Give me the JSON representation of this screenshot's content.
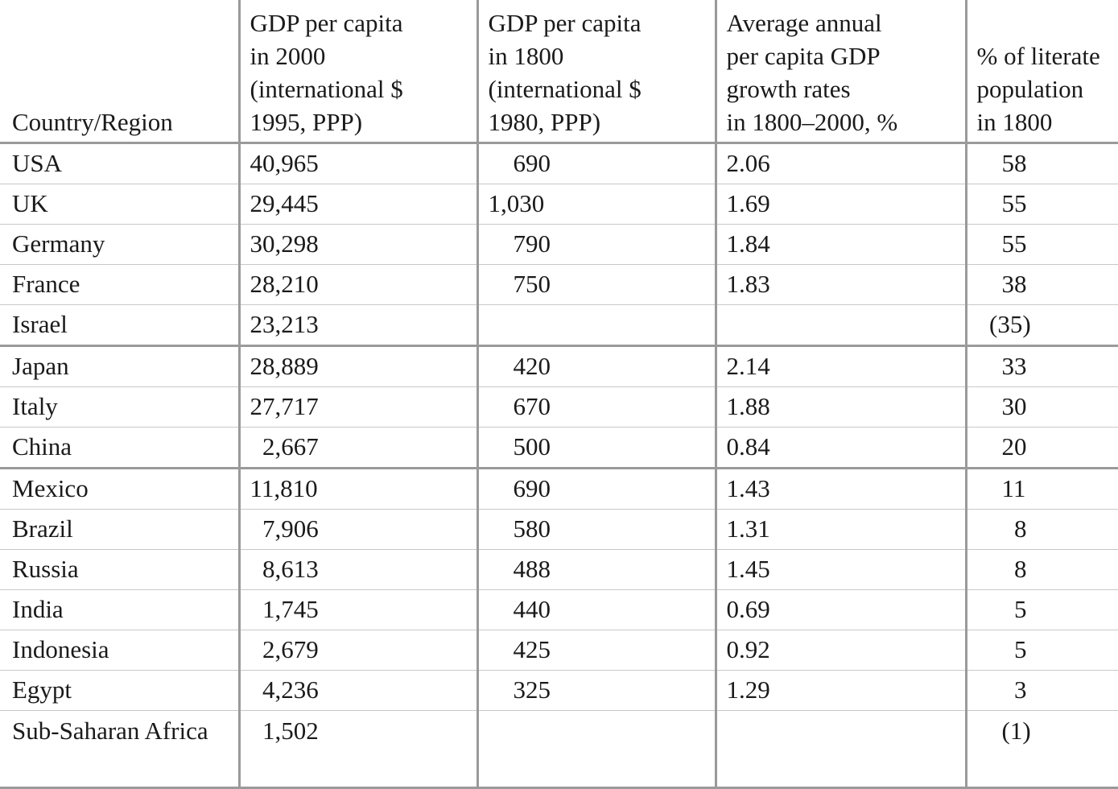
{
  "chart_data": {
    "type": "table",
    "columns": [
      "Country/Region",
      "GDP per capita in 2000 (international $ 1995, PPP)",
      "GDP per capita in 1800 (international $ 1980, PPP)",
      "Average annual per capita GDP growth rates in 1800–2000, %",
      "% of literate population in 1800"
    ],
    "header_lines": [
      [
        "Country/Region"
      ],
      [
        "GDP per capita",
        "in 2000",
        "(international $",
        "1995, PPP)"
      ],
      [
        "GDP per capita",
        "in 1800",
        "(international $",
        "1980, PPP)"
      ],
      [
        "Average annual",
        "per capita GDP",
        "growth rates",
        "in 1800–2000, %"
      ],
      [
        "% of literate",
        "population",
        "in 1800"
      ]
    ],
    "rows": [
      [
        "USA",
        "40,965",
        "690",
        "2.06",
        "58"
      ],
      [
        "UK",
        "29,445",
        "1,030",
        "1.69",
        "55"
      ],
      [
        "Germany",
        "30,298",
        "790",
        "1.84",
        "55"
      ],
      [
        "France",
        "28,210",
        "750",
        "1.83",
        "38"
      ],
      [
        "Israel",
        "23,213",
        "",
        "",
        "(35)"
      ],
      [
        "Japan",
        "28,889",
        "420",
        "2.14",
        "33"
      ],
      [
        "Italy",
        "27,717",
        "670",
        "1.88",
        "30"
      ],
      [
        "China",
        "2,667",
        "500",
        "0.84",
        "20"
      ],
      [
        "Mexico",
        "11,810",
        "690",
        "1.43",
        "11"
      ],
      [
        "Brazil",
        "7,906",
        "580",
        "1.31",
        "8"
      ],
      [
        "Russia",
        "8,613",
        "488",
        "1.45",
        "8"
      ],
      [
        "India",
        "1,745",
        "440",
        "0.69",
        "5"
      ],
      [
        "Indonesia",
        "2,679",
        "425",
        "0.92",
        "5"
      ],
      [
        "Egypt",
        "4,236",
        "325",
        "1.29",
        "3"
      ],
      [
        "Sub-Saharan Africa",
        "1,502",
        "",
        "",
        "(1)"
      ]
    ]
  }
}
